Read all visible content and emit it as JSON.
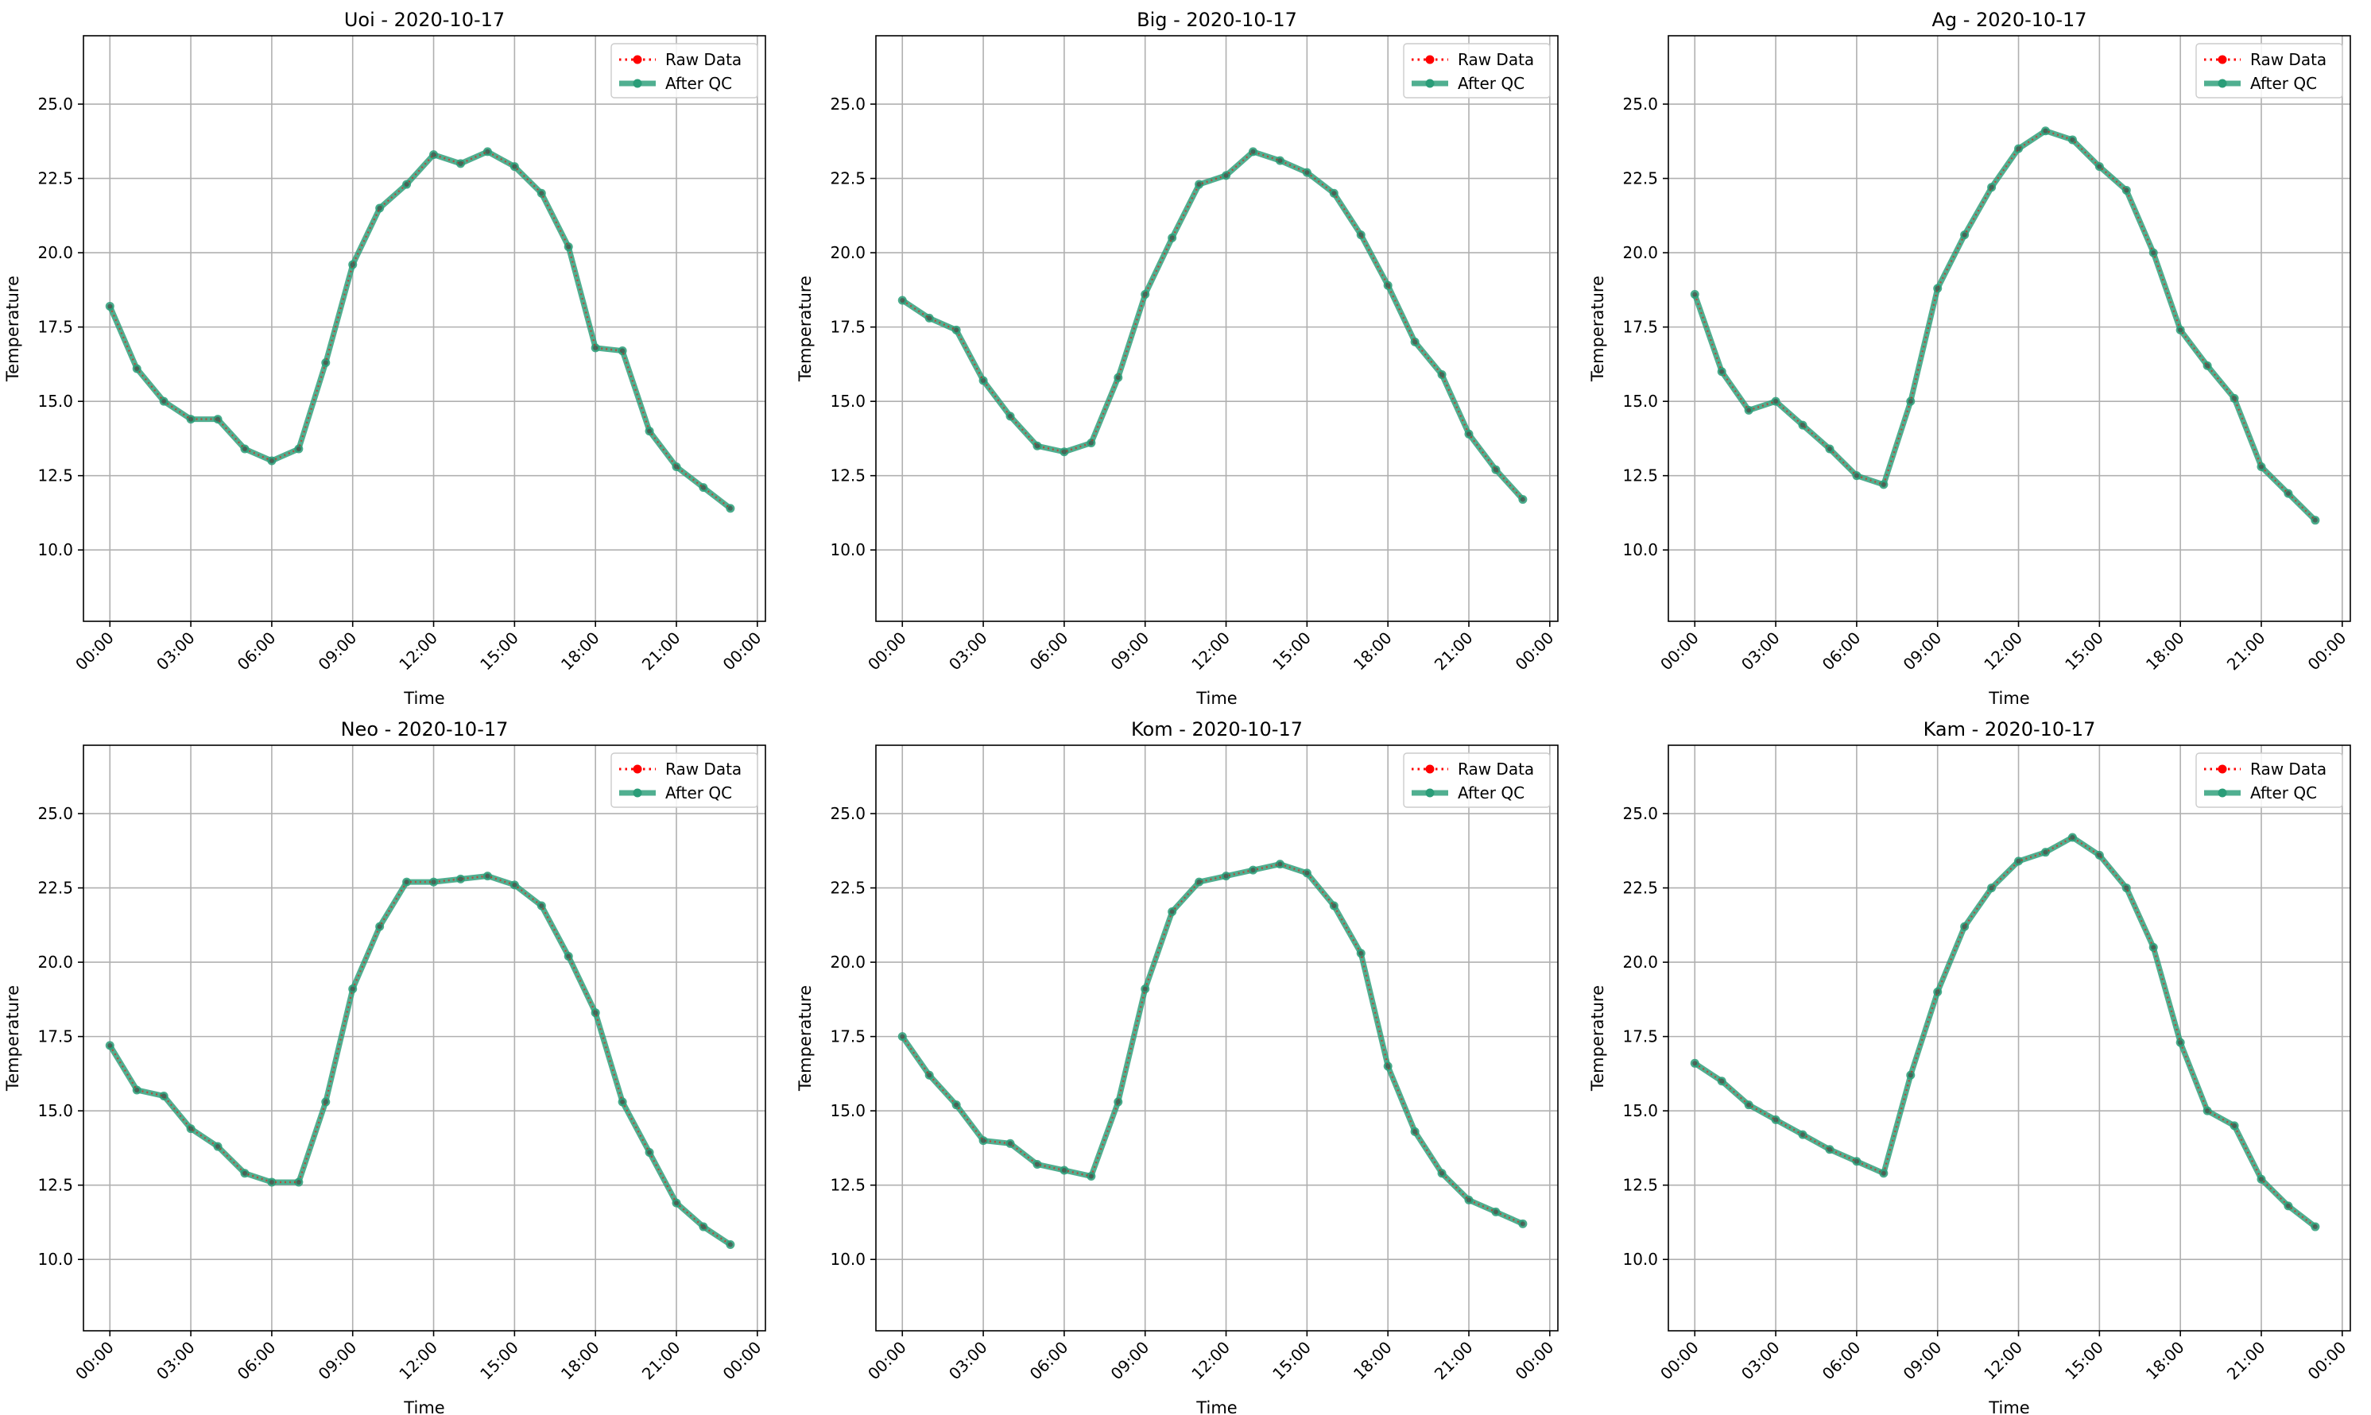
{
  "legend": {
    "raw_label": "Raw Data",
    "qc_label": "After QC",
    "placement": "upper-right"
  },
  "colors": {
    "raw": "#ff0000",
    "qc": "#2a9d78",
    "grid": "#b0b0b0"
  },
  "chart_data": [
    {
      "type": "line",
      "title": "Uoi - 2020-10-17",
      "xlabel": "Time",
      "ylabel": "Temperature",
      "ylim": [
        7.6,
        27.3
      ],
      "yticks": [
        10.0,
        12.5,
        15.0,
        17.5,
        20.0,
        22.5,
        25.0
      ],
      "xticks": [
        0,
        3,
        6,
        9,
        12,
        15,
        18,
        21,
        24
      ],
      "xtick_labels": [
        "00:00",
        "03:00",
        "06:00",
        "09:00",
        "12:00",
        "15:00",
        "18:00",
        "21:00",
        "00:00"
      ],
      "x": [
        0,
        1,
        2,
        3,
        4,
        5,
        6,
        7,
        8,
        9,
        10,
        11,
        12,
        13,
        14,
        15,
        16,
        17,
        18,
        19,
        20,
        21,
        22,
        23
      ],
      "series": [
        {
          "name": "Raw Data",
          "values": [
            18.2,
            16.1,
            15.0,
            14.4,
            14.4,
            13.4,
            13.0,
            13.4,
            16.3,
            19.6,
            21.5,
            22.3,
            23.3,
            23.0,
            23.4,
            22.9,
            22.0,
            20.2,
            16.8,
            16.7,
            14.0,
            12.8,
            12.1,
            11.4
          ]
        },
        {
          "name": "After QC",
          "values": [
            18.2,
            16.1,
            15.0,
            14.4,
            14.4,
            13.4,
            13.0,
            13.4,
            16.3,
            19.6,
            21.5,
            22.3,
            23.3,
            23.0,
            23.4,
            22.9,
            22.0,
            20.2,
            16.8,
            16.7,
            14.0,
            12.8,
            12.1,
            11.4
          ]
        }
      ],
      "grid": true
    },
    {
      "type": "line",
      "title": "Big - 2020-10-17",
      "xlabel": "Time",
      "ylabel": "Temperature",
      "ylim": [
        7.6,
        27.3
      ],
      "yticks": [
        10.0,
        12.5,
        15.0,
        17.5,
        20.0,
        22.5,
        25.0
      ],
      "xticks": [
        0,
        3,
        6,
        9,
        12,
        15,
        18,
        21,
        24
      ],
      "xtick_labels": [
        "00:00",
        "03:00",
        "06:00",
        "09:00",
        "12:00",
        "15:00",
        "18:00",
        "21:00",
        "00:00"
      ],
      "x": [
        0,
        1,
        2,
        3,
        4,
        5,
        6,
        7,
        8,
        9,
        10,
        11,
        12,
        13,
        14,
        15,
        16,
        17,
        18,
        19,
        20,
        21,
        22,
        23
      ],
      "series": [
        {
          "name": "Raw Data",
          "values": [
            18.4,
            17.8,
            17.4,
            15.7,
            14.5,
            13.5,
            13.3,
            13.6,
            15.8,
            18.6,
            20.5,
            22.3,
            22.6,
            23.4,
            23.1,
            22.7,
            22.0,
            20.6,
            18.9,
            17.0,
            15.9,
            13.9,
            12.7,
            11.7
          ]
        },
        {
          "name": "After QC",
          "values": [
            18.4,
            17.8,
            17.4,
            15.7,
            14.5,
            13.5,
            13.3,
            13.6,
            15.8,
            18.6,
            20.5,
            22.3,
            22.6,
            23.4,
            23.1,
            22.7,
            22.0,
            20.6,
            18.9,
            17.0,
            15.9,
            13.9,
            12.7,
            11.7
          ]
        }
      ],
      "grid": true
    },
    {
      "type": "line",
      "title": "Ag - 2020-10-17",
      "xlabel": "Time",
      "ylabel": "Temperature",
      "ylim": [
        7.6,
        27.3
      ],
      "yticks": [
        10.0,
        12.5,
        15.0,
        17.5,
        20.0,
        22.5,
        25.0
      ],
      "xticks": [
        0,
        3,
        6,
        9,
        12,
        15,
        18,
        21,
        24
      ],
      "xtick_labels": [
        "00:00",
        "03:00",
        "06:00",
        "09:00",
        "12:00",
        "15:00",
        "18:00",
        "21:00",
        "00:00"
      ],
      "x": [
        0,
        1,
        2,
        3,
        4,
        5,
        6,
        7,
        8,
        9,
        10,
        11,
        12,
        13,
        14,
        15,
        16,
        17,
        18,
        19,
        20,
        21,
        22,
        23
      ],
      "series": [
        {
          "name": "Raw Data",
          "values": [
            18.6,
            16.0,
            14.7,
            15.0,
            14.2,
            13.4,
            12.5,
            12.2,
            15.0,
            18.8,
            20.6,
            22.2,
            23.5,
            24.1,
            23.8,
            22.9,
            22.1,
            20.0,
            17.4,
            16.2,
            15.1,
            12.8,
            11.9,
            11.0
          ]
        },
        {
          "name": "After QC",
          "values": [
            18.6,
            16.0,
            14.7,
            15.0,
            14.2,
            13.4,
            12.5,
            12.2,
            15.0,
            18.8,
            20.6,
            22.2,
            23.5,
            24.1,
            23.8,
            22.9,
            22.1,
            20.0,
            17.4,
            16.2,
            15.1,
            12.8,
            11.9,
            11.0
          ]
        }
      ],
      "grid": true
    },
    {
      "type": "line",
      "title": "Neo - 2020-10-17",
      "xlabel": "Time",
      "ylabel": "Temperature",
      "ylim": [
        7.6,
        27.3
      ],
      "yticks": [
        10.0,
        12.5,
        15.0,
        17.5,
        20.0,
        22.5,
        25.0
      ],
      "xticks": [
        0,
        3,
        6,
        9,
        12,
        15,
        18,
        21,
        24
      ],
      "xtick_labels": [
        "00:00",
        "03:00",
        "06:00",
        "09:00",
        "12:00",
        "15:00",
        "18:00",
        "21:00",
        "00:00"
      ],
      "x": [
        0,
        1,
        2,
        3,
        4,
        5,
        6,
        7,
        8,
        9,
        10,
        11,
        12,
        13,
        14,
        15,
        16,
        17,
        18,
        19,
        20,
        21,
        22,
        23
      ],
      "series": [
        {
          "name": "Raw Data",
          "values": [
            17.2,
            15.7,
            15.5,
            14.4,
            13.8,
            12.9,
            12.6,
            12.6,
            15.3,
            19.1,
            21.2,
            22.7,
            22.7,
            22.8,
            22.9,
            22.6,
            21.9,
            20.2,
            18.3,
            15.3,
            13.6,
            11.9,
            11.1,
            10.5
          ]
        },
        {
          "name": "After QC",
          "values": [
            17.2,
            15.7,
            15.5,
            14.4,
            13.8,
            12.9,
            12.6,
            12.6,
            15.3,
            19.1,
            21.2,
            22.7,
            22.7,
            22.8,
            22.9,
            22.6,
            21.9,
            20.2,
            18.3,
            15.3,
            13.6,
            11.9,
            11.1,
            10.5
          ]
        }
      ],
      "grid": true
    },
    {
      "type": "line",
      "title": "Kom - 2020-10-17",
      "xlabel": "Time",
      "ylabel": "Temperature",
      "ylim": [
        7.6,
        27.3
      ],
      "yticks": [
        10.0,
        12.5,
        15.0,
        17.5,
        20.0,
        22.5,
        25.0
      ],
      "xticks": [
        0,
        3,
        6,
        9,
        12,
        15,
        18,
        21,
        24
      ],
      "xtick_labels": [
        "00:00",
        "03:00",
        "06:00",
        "09:00",
        "12:00",
        "15:00",
        "18:00",
        "21:00",
        "00:00"
      ],
      "x": [
        0,
        1,
        2,
        3,
        4,
        5,
        6,
        7,
        8,
        9,
        10,
        11,
        12,
        13,
        14,
        15,
        16,
        17,
        18,
        19,
        20,
        21,
        22,
        23
      ],
      "series": [
        {
          "name": "Raw Data",
          "values": [
            17.5,
            16.2,
            15.2,
            14.0,
            13.9,
            13.2,
            13.0,
            12.8,
            15.3,
            19.1,
            21.7,
            22.7,
            22.9,
            23.1,
            23.3,
            23.0,
            21.9,
            20.3,
            16.5,
            14.3,
            12.9,
            12.0,
            11.6,
            11.2
          ]
        },
        {
          "name": "After QC",
          "values": [
            17.5,
            16.2,
            15.2,
            14.0,
            13.9,
            13.2,
            13.0,
            12.8,
            15.3,
            19.1,
            21.7,
            22.7,
            22.9,
            23.1,
            23.3,
            23.0,
            21.9,
            20.3,
            16.5,
            14.3,
            12.9,
            12.0,
            11.6,
            11.2
          ]
        }
      ],
      "grid": true
    },
    {
      "type": "line",
      "title": "Kam - 2020-10-17",
      "xlabel": "Time",
      "ylabel": "Temperature",
      "ylim": [
        7.6,
        27.3
      ],
      "yticks": [
        10.0,
        12.5,
        15.0,
        17.5,
        20.0,
        22.5,
        25.0
      ],
      "xticks": [
        0,
        3,
        6,
        9,
        12,
        15,
        18,
        21,
        24
      ],
      "xtick_labels": [
        "00:00",
        "03:00",
        "06:00",
        "09:00",
        "12:00",
        "15:00",
        "18:00",
        "21:00",
        "00:00"
      ],
      "x": [
        0,
        1,
        2,
        3,
        4,
        5,
        6,
        7,
        8,
        9,
        10,
        11,
        12,
        13,
        14,
        15,
        16,
        17,
        18,
        19,
        20,
        21,
        22,
        23
      ],
      "series": [
        {
          "name": "Raw Data",
          "values": [
            16.6,
            16.0,
            15.2,
            14.7,
            14.2,
            13.7,
            13.3,
            12.9,
            16.2,
            19.0,
            21.2,
            22.5,
            23.4,
            23.7,
            24.2,
            23.6,
            22.5,
            20.5,
            17.3,
            15.0,
            14.5,
            12.7,
            11.8,
            11.1
          ]
        },
        {
          "name": "After QC",
          "values": [
            16.6,
            16.0,
            15.2,
            14.7,
            14.2,
            13.7,
            13.3,
            12.9,
            16.2,
            19.0,
            21.2,
            22.5,
            23.4,
            23.7,
            24.2,
            23.6,
            22.5,
            20.5,
            17.3,
            15.0,
            14.5,
            12.7,
            11.8,
            11.1
          ]
        }
      ],
      "grid": true
    }
  ]
}
